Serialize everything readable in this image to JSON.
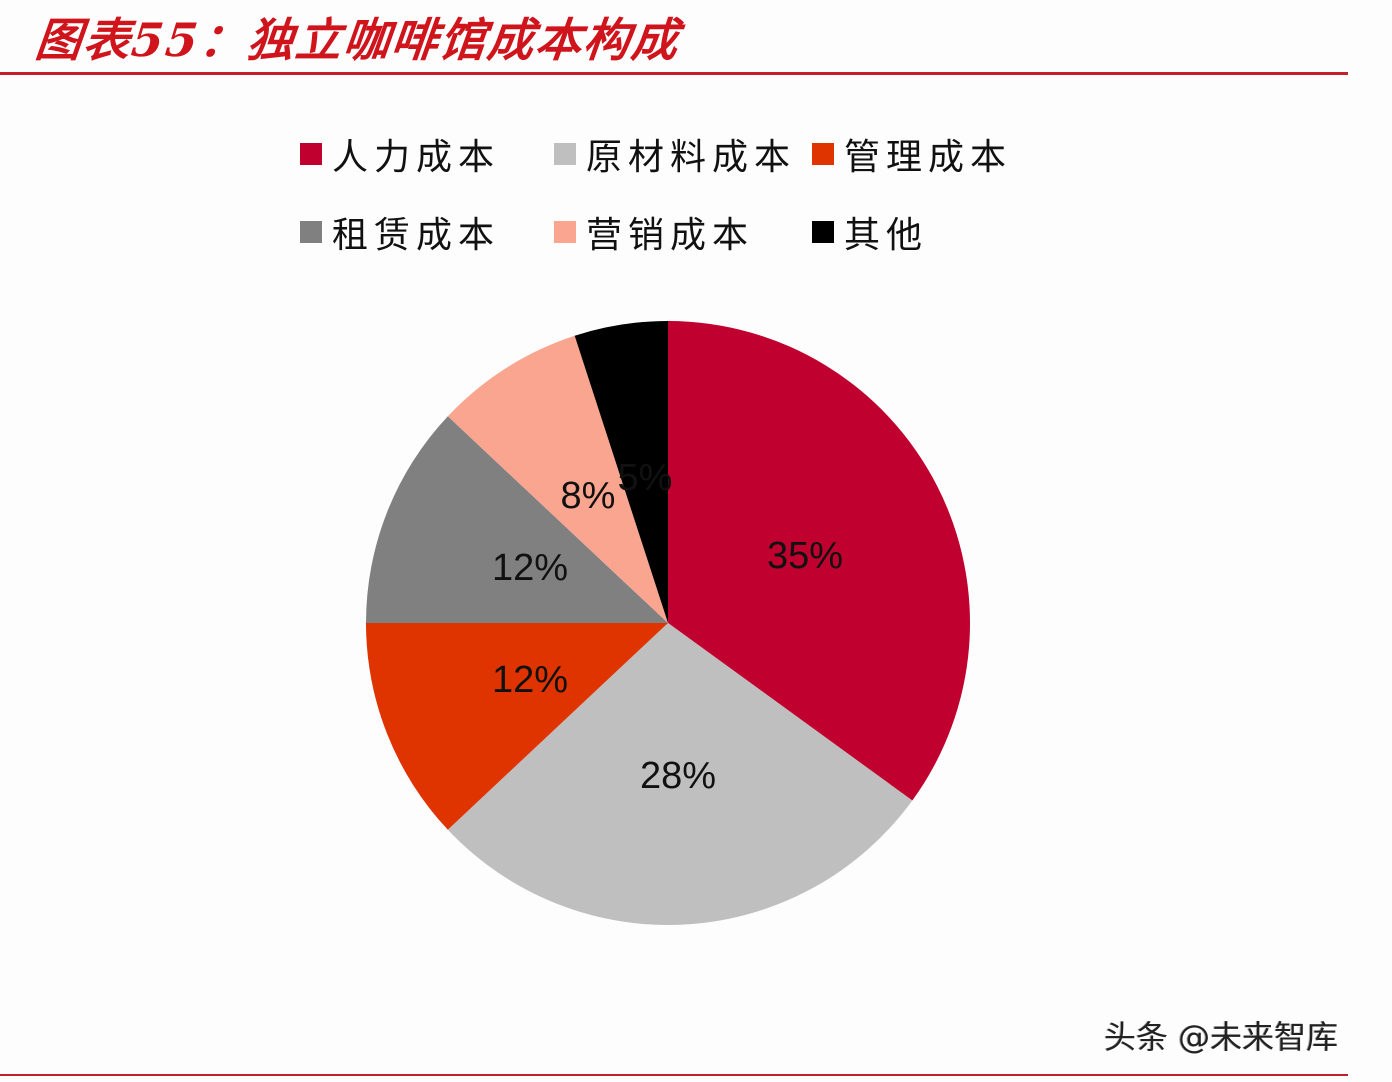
{
  "title": "图表55：独立咖啡馆成本构成",
  "watermark": "头条 @未来智库",
  "legend": [
    {
      "label": "人力成本",
      "color": "#c0002e"
    },
    {
      "label": "原材料成本",
      "color": "#bfbfbf"
    },
    {
      "label": "管理成本",
      "color": "#e03400"
    },
    {
      "label": "租赁成本",
      "color": "#808080"
    },
    {
      "label": "营销成本",
      "color": "#faa590"
    },
    {
      "label": "其他",
      "color": "#000000"
    }
  ],
  "chart_data": {
    "type": "pie",
    "title": "图表55：独立咖啡馆成本构成",
    "categories": [
      "人力成本",
      "原材料成本",
      "管理成本",
      "租赁成本",
      "营销成本",
      "其他"
    ],
    "values": [
      35,
      28,
      12,
      12,
      8,
      5
    ],
    "labels": [
      "35%",
      "28%",
      "12%",
      "12%",
      "8%",
      "5%"
    ],
    "colors": [
      "#c0002e",
      "#bfbfbf",
      "#e03400",
      "#808080",
      "#faa590",
      "#000000"
    ],
    "start_angle": "12 o'clock",
    "direction": "clockwise",
    "legend_position": "top"
  }
}
